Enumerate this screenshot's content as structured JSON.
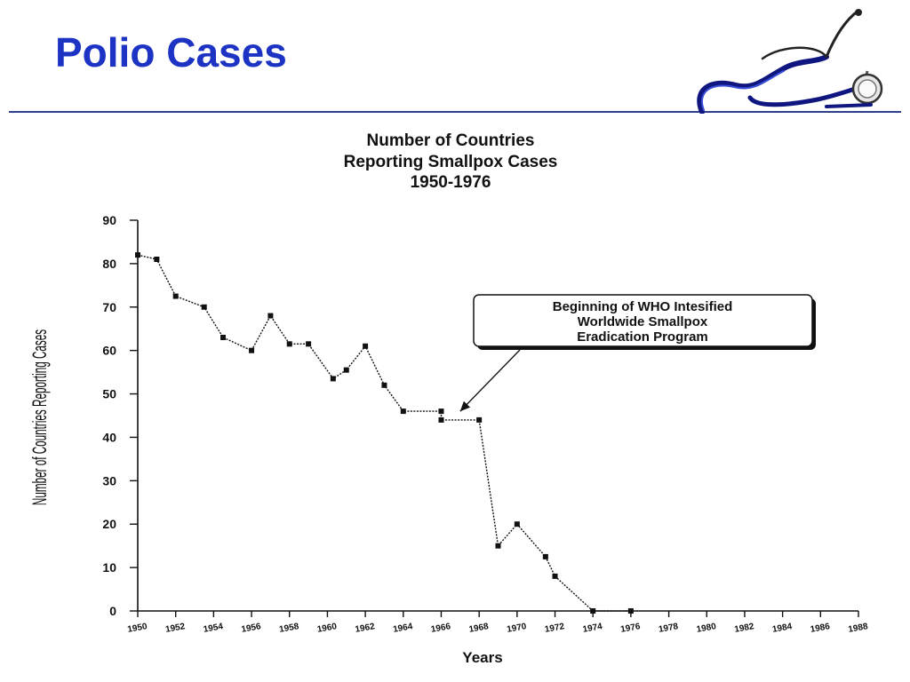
{
  "slide": {
    "title": "Polio Cases",
    "accent_color": "#1c33c4",
    "rule_color": "#2b3f8a",
    "decoration_icon": "stethoscope-icon"
  },
  "chart_data": {
    "type": "line",
    "title_lines": [
      "Number of Countries",
      "Reporting Smallpox Cases",
      "1950-1976"
    ],
    "xlabel": "Years",
    "ylabel": "Number of Countries Reporting Cases",
    "ylim": [
      0,
      90
    ],
    "xlim": [
      1950,
      1988
    ],
    "y_ticks": [
      0,
      10,
      20,
      30,
      40,
      50,
      60,
      70,
      80,
      90
    ],
    "x_ticks": [
      {
        "value": 1950,
        "label": "1950"
      },
      {
        "value": 1952,
        "label": "1952"
      },
      {
        "value": 1954,
        "label": "1954"
      },
      {
        "value": 1956,
        "label": "1956"
      },
      {
        "value": 1958,
        "label": "1958"
      },
      {
        "value": 1960,
        "label": "1960"
      },
      {
        "value": 1962,
        "label": "1962"
      },
      {
        "value": 1964,
        "label": "1964"
      },
      {
        "value": 1966,
        "label": "1966"
      },
      {
        "value": 1968,
        "label": "1968"
      },
      {
        "value": 1970,
        "label": "1970"
      },
      {
        "value": 1972,
        "label": "1972"
      },
      {
        "value": 1974,
        "label": "1974"
      },
      {
        "value": 1976,
        "label": "1976"
      },
      {
        "value": 1978,
        "label": "1978"
      },
      {
        "value": 1980,
        "label": "1980"
      },
      {
        "value": 1982,
        "label": "1982"
      },
      {
        "value": 1984,
        "label": "1984"
      },
      {
        "value": 1986,
        "label": "1986"
      },
      {
        "value": 1988,
        "label": "1988"
      }
    ],
    "grid": false,
    "series": [
      {
        "x": [
          1950,
          1951,
          1952,
          1953.5,
          1954.5,
          1956,
          1957,
          1958,
          1959,
          1960.3,
          1961,
          1962,
          1963,
          1964,
          1966,
          1966,
          1968,
          1969,
          1970,
          1971.5,
          1972,
          1974,
          1976
        ],
        "y": [
          82,
          81,
          72.5,
          70,
          63,
          60,
          68,
          61.5,
          61.5,
          53.5,
          55.5,
          61,
          52,
          46,
          46,
          44,
          44,
          15,
          20,
          12.5,
          8,
          0,
          0
        ]
      }
    ],
    "annotations": [
      {
        "text_lines": [
          "Beginning of WHO Intesified",
          "Worldwide Smallpox",
          "Eradication Program"
        ],
        "points_to": {
          "x": 1967,
          "y": 46
        }
      }
    ]
  }
}
